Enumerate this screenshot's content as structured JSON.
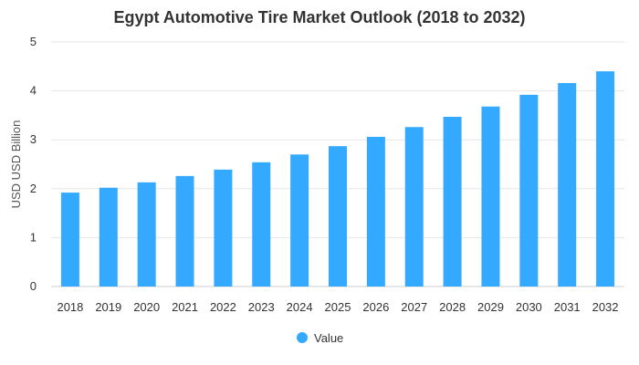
{
  "chart_data": {
    "type": "bar",
    "title": "Egypt Automotive Tire Market Outlook (2018 to 2032)",
    "ylabel": "USD USD Billion",
    "xlabel": "",
    "categories": [
      "2018",
      "2019",
      "2020",
      "2021",
      "2022",
      "2023",
      "2024",
      "2025",
      "2026",
      "2027",
      "2028",
      "2029",
      "2030",
      "2031",
      "2032"
    ],
    "series": [
      {
        "name": "Value",
        "values": [
          1.92,
          2.02,
          2.13,
          2.26,
          2.39,
          2.54,
          2.7,
          2.87,
          3.06,
          3.26,
          3.47,
          3.68,
          3.92,
          4.16,
          4.4
        ]
      }
    ],
    "ylim": [
      0,
      5
    ],
    "yticks": [
      "0",
      "1",
      "2",
      "3",
      "4",
      "5"
    ],
    "grid": true,
    "legend_position": "bottom",
    "colors": {
      "bar": "#33aaff",
      "text": "#333333"
    }
  }
}
